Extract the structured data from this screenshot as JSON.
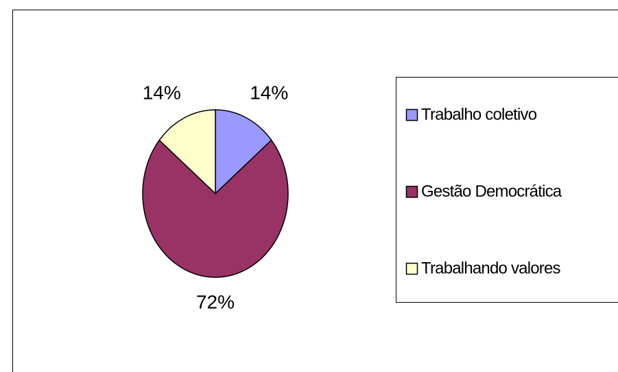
{
  "chart_data": {
    "type": "pie",
    "categories": [
      "Trabalho coletivo",
      "Gestão Democrática",
      "Trabalhando valores"
    ],
    "values": [
      14,
      72,
      14
    ],
    "value_labels": [
      "14%",
      "72%",
      "14%"
    ],
    "colors": [
      "#9999ff",
      "#993366",
      "#ffffcc"
    ],
    "legend": "right"
  }
}
